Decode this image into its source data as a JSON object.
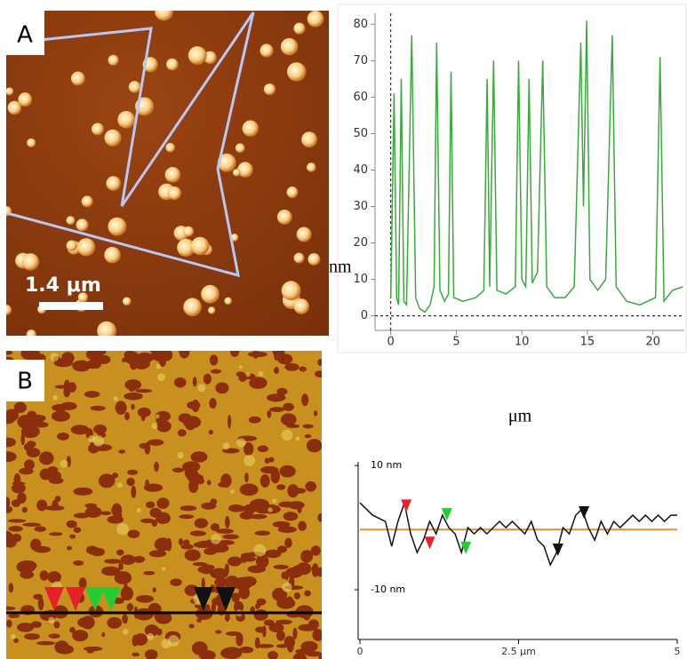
{
  "panels": [
    {
      "label": "A",
      "scale_bar": "1.4 μm"
    },
    {
      "label": "B"
    }
  ],
  "chart_data": [
    {
      "type": "line",
      "x_label": "μm",
      "y_label": "nm",
      "xlim": [
        -1.2,
        22.4
      ],
      "ylim": [
        -4,
        83
      ],
      "xticks": [
        0,
        5,
        10,
        15,
        20
      ],
      "yticks": [
        0,
        10,
        20,
        30,
        40,
        50,
        60,
        70,
        80
      ],
      "series": [
        {
          "color": "#3aaa3a",
          "x": [
            0.0,
            0.25,
            0.45,
            0.6,
            0.8,
            1.0,
            1.2,
            1.6,
            1.9,
            2.2,
            2.6,
            3.0,
            3.3,
            3.5,
            3.75,
            4.1,
            4.4,
            4.6,
            4.8,
            5.5,
            6.5,
            7.1,
            7.35,
            7.55,
            7.85,
            8.1,
            8.8,
            9.5,
            9.75,
            10.0,
            10.3,
            10.55,
            10.8,
            11.2,
            11.6,
            11.9,
            12.5,
            13.3,
            14.0,
            14.5,
            14.7,
            14.95,
            15.2,
            15.8,
            16.4,
            16.9,
            17.2,
            18.0,
            19.0,
            20.2,
            20.55,
            20.85,
            21.5,
            22.3
          ],
          "values": [
            5,
            61,
            5,
            3,
            65,
            4,
            3,
            77,
            5,
            2,
            1,
            3,
            8,
            75,
            7,
            4,
            6,
            67,
            5,
            4,
            5,
            7,
            65,
            8,
            70,
            7,
            6,
            8,
            70,
            10,
            8,
            65,
            9,
            12,
            70,
            8,
            5,
            5,
            8,
            75,
            30,
            81,
            10,
            7,
            10,
            77,
            8,
            4,
            3,
            5,
            71,
            4,
            7,
            8
          ]
        }
      ]
    },
    {
      "type": "line",
      "xlim": [
        0,
        5
      ],
      "ylim": [
        -18,
        10.6
      ],
      "xticks": [
        0,
        {
          "value": 2.5,
          "label": "2.5 μm"
        },
        5
      ],
      "yticks": [
        {
          "value": 10,
          "label": "10 nm"
        },
        {
          "value": -10,
          "label": "-10 nm"
        }
      ],
      "reference_line": {
        "value": -0.3,
        "color": "#e0902a"
      },
      "series": [
        {
          "color": "#111111",
          "x": [
            0,
            0.1,
            0.2,
            0.3,
            0.4,
            0.5,
            0.6,
            0.7,
            0.8,
            0.9,
            1.0,
            1.1,
            1.2,
            1.3,
            1.4,
            1.5,
            1.6,
            1.7,
            1.8,
            1.9,
            2.0,
            2.1,
            2.2,
            2.3,
            2.4,
            2.5,
            2.6,
            2.7,
            2.8,
            2.9,
            3.0,
            3.1,
            3.2,
            3.3,
            3.4,
            3.5,
            3.6,
            3.7,
            3.8,
            3.9,
            4.0,
            4.1,
            4.2,
            4.3,
            4.4,
            4.5,
            4.6,
            4.7,
            4.8,
            4.9,
            5.0
          ],
          "values": [
            4,
            3,
            2,
            1.5,
            1,
            -3,
            1,
            4,
            -1,
            -4,
            -2,
            1,
            -1,
            2,
            0,
            -1,
            -4,
            0,
            -1,
            0,
            -1,
            0,
            1,
            0,
            1,
            0,
            -1,
            1,
            -2,
            -3,
            -6,
            -4,
            0,
            -1,
            2,
            3,
            0,
            -2,
            1,
            -1,
            1,
            0,
            1,
            2,
            1,
            2,
            1,
            2,
            1,
            2,
            2
          ]
        }
      ],
      "markers": [
        {
          "x": 0.73,
          "y": 3.4,
          "color": "#e8202a"
        },
        {
          "x": 1.1,
          "y": -2.6,
          "color": "#e8202a"
        },
        {
          "x": 1.37,
          "y": 2,
          "color": "#22cc33"
        },
        {
          "x": 1.67,
          "y": -3.4,
          "color": "#22cc33"
        },
        {
          "x": 3.12,
          "y": -3.7,
          "color": "#111111"
        },
        {
          "x": 3.53,
          "y": 2.3,
          "color": "#111111"
        }
      ]
    }
  ]
}
